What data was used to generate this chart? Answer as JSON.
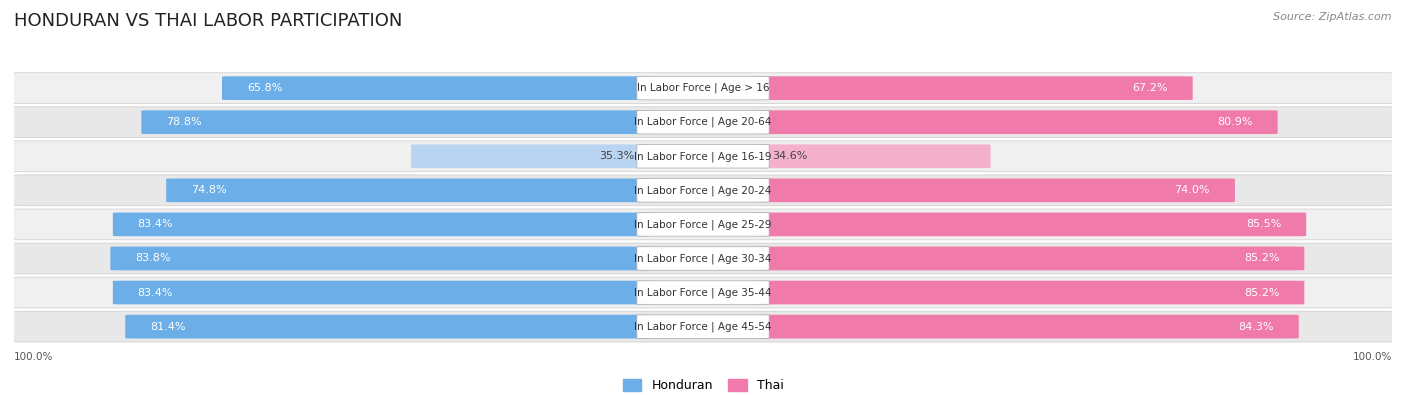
{
  "title": "HONDURAN VS THAI LABOR PARTICIPATION",
  "source": "Source: ZipAtlas.com",
  "categories": [
    "In Labor Force | Age > 16",
    "In Labor Force | Age 20-64",
    "In Labor Force | Age 16-19",
    "In Labor Force | Age 20-24",
    "In Labor Force | Age 25-29",
    "In Labor Force | Age 30-34",
    "In Labor Force | Age 35-44",
    "In Labor Force | Age 45-54"
  ],
  "honduran": [
    65.8,
    78.8,
    35.3,
    74.8,
    83.4,
    83.8,
    83.4,
    81.4
  ],
  "thai": [
    67.2,
    80.9,
    34.6,
    74.0,
    85.5,
    85.2,
    85.2,
    84.3
  ],
  "honduran_color_strong": "#6baee8",
  "honduran_color_light": "#b8d4f0",
  "thai_color_strong": "#f07aaa",
  "thai_color_light": "#f5b0cc",
  "bg_color": "#ffffff",
  "row_bg": "#f0f0f0",
  "row_bg_alt": "#e8e8e8",
  "label_bg": "#ffffff",
  "max_val": 100.0,
  "legend_honduran": "Honduran",
  "legend_thai": "Thai",
  "axis_label_left": "100.0%",
  "axis_label_right": "100.0%",
  "title_fontsize": 13,
  "source_fontsize": 8,
  "label_fontsize": 7.5,
  "value_fontsize": 8.5,
  "bar_value_fontsize": 8.0
}
